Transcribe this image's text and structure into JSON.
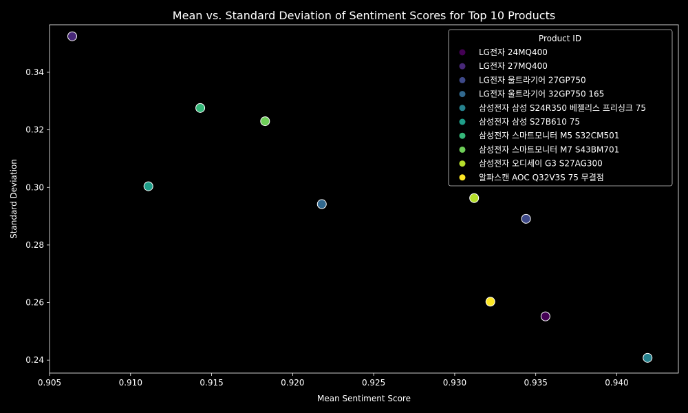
{
  "chart_data": {
    "type": "scatter",
    "title": "Mean vs. Standard Deviation of Sentiment Scores for Top 10 Products",
    "xlabel": "Mean Sentiment Score",
    "ylabel": "Standard Deviation",
    "xlim": [
      0.905,
      0.9438
    ],
    "ylim": [
      0.2355,
      0.3565
    ],
    "x_ticks": [
      "0.905",
      "0.910",
      "0.915",
      "0.920",
      "0.925",
      "0.930",
      "0.935",
      "0.940"
    ],
    "y_ticks": [
      "0.24",
      "0.26",
      "0.28",
      "0.30",
      "0.32",
      "0.34"
    ],
    "grid": false,
    "legend_placement": "top-right",
    "legend_title": "Product ID",
    "series": [
      {
        "name": "LG전자 24MQ400",
        "color": "#440154",
        "x": 0.9356,
        "y": 0.2552
      },
      {
        "name": "LG전자 27MQ400",
        "color": "#482878",
        "x": 0.9064,
        "y": 0.3525
      },
      {
        "name": "LG전자 울트라기어 27GP750",
        "color": "#3e4989",
        "x": 0.9344,
        "y": 0.2891
      },
      {
        "name": "LG전자 울트라기어 32GP750 165",
        "color": "#31688e",
        "x": 0.9218,
        "y": 0.2942
      },
      {
        "name": "삼성전자 삼성 S24R350 베젤리스 프리싱크 75",
        "color": "#26828e",
        "x": 0.9419,
        "y": 0.2408
      },
      {
        "name": "삼성전자 삼성 S27B610 75",
        "color": "#1f9e89",
        "x": 0.9111,
        "y": 0.3004
      },
      {
        "name": "삼성전자 스마트모니터 M5 S32CM501",
        "color": "#35b779",
        "x": 0.9143,
        "y": 0.3276
      },
      {
        "name": "삼성전자 스마트모니터 M7 S43BM701",
        "color": "#6ece58",
        "x": 0.9183,
        "y": 0.323
      },
      {
        "name": "삼성전자 오디세이 G3 S27AG300",
        "color": "#b5de2b",
        "x": 0.9312,
        "y": 0.2963
      },
      {
        "name": "알파스캔 AOC Q32V3S 75 무결점",
        "color": "#fde725",
        "x": 0.9322,
        "y": 0.2603
      }
    ]
  }
}
